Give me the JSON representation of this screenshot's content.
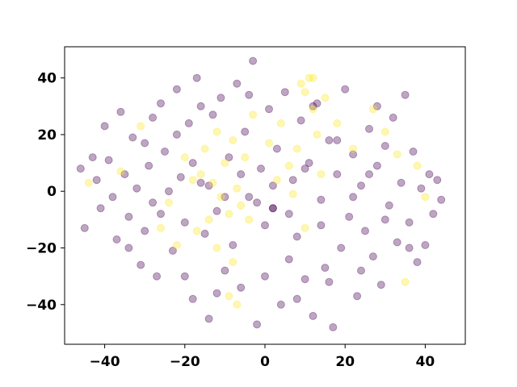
{
  "chart_data": {
    "type": "scatter",
    "title": "",
    "xlabel": "",
    "ylabel": "",
    "xlim": [
      -50,
      50
    ],
    "ylim": [
      -54,
      51
    ],
    "xticks": [
      -40,
      -20,
      0,
      20,
      40
    ],
    "yticks": [
      -40,
      -20,
      0,
      20,
      40
    ],
    "grid": false,
    "legend": "none",
    "marker_alpha": 0.35,
    "series": [
      {
        "color": "#440154",
        "points": [
          [
            -46,
            8
          ],
          [
            -45,
            -13
          ],
          [
            -43,
            12
          ],
          [
            -42,
            4
          ],
          [
            -41,
            -6
          ],
          [
            -40,
            23
          ],
          [
            -39,
            11
          ],
          [
            -38,
            -2
          ],
          [
            -37,
            -17
          ],
          [
            -36,
            28
          ],
          [
            -35,
            6
          ],
          [
            -34,
            -9
          ],
          [
            -33,
            19
          ],
          [
            -32,
            1
          ],
          [
            -31,
            -26
          ],
          [
            -30,
            17
          ],
          [
            -29,
            9
          ],
          [
            -28,
            -4
          ],
          [
            -27,
            -30
          ],
          [
            -26,
            31
          ],
          [
            -25,
            14
          ],
          [
            -24,
            0
          ],
          [
            -23,
            -21
          ],
          [
            -22,
            36
          ],
          [
            -21,
            5
          ],
          [
            -20,
            -11
          ],
          [
            -19,
            24
          ],
          [
            -18,
            -38
          ],
          [
            -17,
            40
          ],
          [
            -16,
            3
          ],
          [
            -15,
            -15
          ],
          [
            -14,
            -45
          ],
          [
            -13,
            27
          ],
          [
            -12,
            -7
          ],
          [
            -11,
            33
          ],
          [
            -10,
            -28
          ],
          [
            -9,
            12
          ],
          [
            -8,
            -19
          ],
          [
            -7,
            38
          ],
          [
            -6,
            -34
          ],
          [
            -5,
            21
          ],
          [
            -4,
            -2
          ],
          [
            -3,
            46
          ],
          [
            -2,
            -47
          ],
          [
            -1,
            8
          ],
          [
            0,
            -12
          ],
          [
            1,
            29
          ],
          [
            2,
            -6
          ],
          [
            3,
            15
          ],
          [
            4,
            -40
          ],
          [
            5,
            35
          ],
          [
            6,
            -24
          ],
          [
            7,
            4
          ],
          [
            8,
            -16
          ],
          [
            9,
            25
          ],
          [
            10,
            -31
          ],
          [
            11,
            10
          ],
          [
            12,
            -44
          ],
          [
            13,
            31
          ],
          [
            14,
            -3
          ],
          [
            15,
            -27
          ],
          [
            16,
            18
          ],
          [
            17,
            -48
          ],
          [
            18,
            6
          ],
          [
            19,
            -20
          ],
          [
            20,
            36
          ],
          [
            21,
            -9
          ],
          [
            22,
            13
          ],
          [
            23,
            -37
          ],
          [
            24,
            2
          ],
          [
            25,
            -14
          ],
          [
            26,
            22
          ],
          [
            27,
            -23
          ],
          [
            28,
            9
          ],
          [
            29,
            -33
          ],
          [
            30,
            16
          ],
          [
            31,
            -5
          ],
          [
            32,
            26
          ],
          [
            33,
            -18
          ],
          [
            34,
            3
          ],
          [
            35,
            34
          ],
          [
            36,
            -11
          ],
          [
            37,
            14
          ],
          [
            38,
            -25
          ],
          [
            39,
            1
          ],
          [
            40,
            -19
          ],
          [
            41,
            6
          ],
          [
            42,
            -8
          ],
          [
            43,
            4
          ],
          [
            44,
            -3
          ],
          [
            -30,
            -14
          ],
          [
            -26,
            -8
          ],
          [
            -22,
            20
          ],
          [
            -18,
            10
          ],
          [
            -14,
            2
          ],
          [
            -10,
            -2
          ],
          [
            -6,
            6
          ],
          [
            -2,
            -4
          ],
          [
            2,
            2
          ],
          [
            6,
            -8
          ],
          [
            10,
            8
          ],
          [
            14,
            -12
          ],
          [
            18,
            18
          ],
          [
            22,
            -2
          ],
          [
            26,
            6
          ],
          [
            30,
            -10
          ],
          [
            -20,
            -30
          ],
          [
            -12,
            -36
          ],
          [
            0,
            -30
          ],
          [
            8,
            -38
          ],
          [
            16,
            -32
          ],
          [
            24,
            -28
          ],
          [
            -28,
            26
          ],
          [
            -16,
            30
          ],
          [
            -4,
            34
          ],
          [
            12,
            30
          ],
          [
            28,
            30
          ],
          [
            -34,
            -20
          ],
          [
            36,
            -20
          ],
          [
            2,
            -6
          ]
        ]
      },
      {
        "color": "#fde725",
        "points": [
          [
            -44,
            3
          ],
          [
            -36,
            7
          ],
          [
            -31,
            23
          ],
          [
            -26,
            -13
          ],
          [
            -22,
            -19
          ],
          [
            -18,
            4
          ],
          [
            -15,
            15
          ],
          [
            -13,
            3
          ],
          [
            -12,
            21
          ],
          [
            -11,
            -2
          ],
          [
            -10,
            10
          ],
          [
            -9,
            -8
          ],
          [
            -8,
            18
          ],
          [
            -7,
            1
          ],
          [
            -6,
            -5
          ],
          [
            -5,
            12
          ],
          [
            -12,
            -20
          ],
          [
            -9,
            -37
          ],
          [
            -7,
            -40
          ],
          [
            -3,
            27
          ],
          [
            1,
            17
          ],
          [
            4,
            24
          ],
          [
            6,
            9
          ],
          [
            8,
            15
          ],
          [
            9,
            38
          ],
          [
            10,
            35
          ],
          [
            11,
            40
          ],
          [
            12,
            29
          ],
          [
            13,
            20
          ],
          [
            14,
            6
          ],
          [
            7,
            -1
          ],
          [
            10,
            -13
          ],
          [
            12,
            40
          ],
          [
            15,
            33
          ],
          [
            27,
            29
          ],
          [
            30,
            21
          ],
          [
            33,
            13
          ],
          [
            38,
            9
          ],
          [
            40,
            -2
          ],
          [
            35,
            -32
          ],
          [
            -16,
            6
          ],
          [
            -8,
            -25
          ],
          [
            -4,
            -10
          ],
          [
            3,
            4
          ],
          [
            18,
            24
          ],
          [
            22,
            15
          ],
          [
            -24,
            -4
          ],
          [
            -20,
            12
          ],
          [
            -14,
            -10
          ],
          [
            -17,
            -14
          ]
        ]
      }
    ]
  }
}
